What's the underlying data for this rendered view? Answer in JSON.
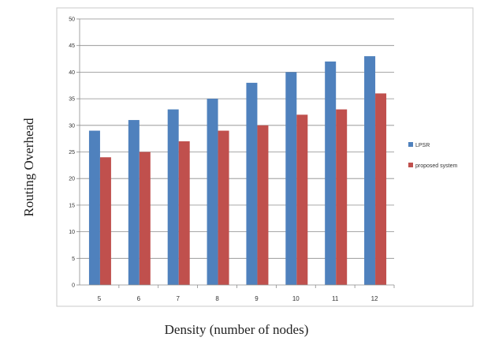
{
  "chart_data": {
    "type": "bar",
    "xlabel": "Density (number of nodes)",
    "ylabel": "Routing Overhead",
    "categories": [
      "5",
      "6",
      "7",
      "8",
      "9",
      "10",
      "11",
      "12"
    ],
    "series": [
      {
        "name": "LPSR",
        "color": "#4f81bd",
        "values": [
          29,
          31,
          33,
          35,
          38,
          40,
          42,
          43
        ]
      },
      {
        "name": "proposed system",
        "color": "#c0504d",
        "values": [
          24,
          25,
          27,
          29,
          30,
          32,
          33,
          36
        ]
      }
    ],
    "ylim": [
      0,
      50
    ],
    "yticks": [
      "0",
      "5",
      "10",
      "15",
      "20",
      "25",
      "30",
      "35",
      "40",
      "45",
      "50"
    ],
    "grid": true,
    "legend": "right"
  }
}
